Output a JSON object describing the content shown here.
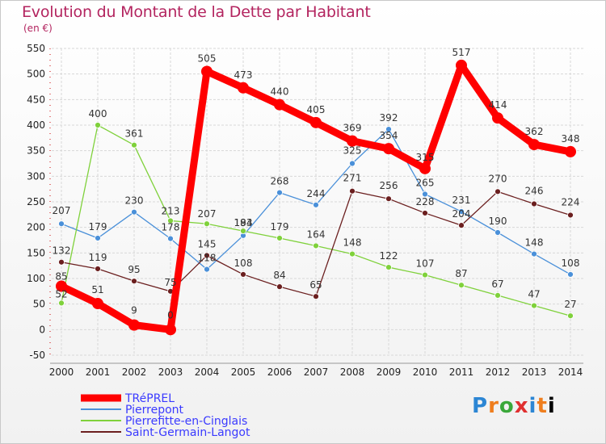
{
  "title": "Evolution du Montant de la Dette par Habitant",
  "subtitle": "(en €)",
  "logo_text": "Proxiti",
  "chart_data": {
    "type": "line",
    "title": "Evolution du Montant de la Dette par Habitant",
    "subtitle": "(en €)",
    "x": [
      "2000",
      "2001",
      "2002",
      "2003",
      "2004",
      "2005",
      "2006",
      "2007",
      "2008",
      "2009",
      "2010",
      "2011",
      "2012",
      "2013",
      "2014"
    ],
    "ylim": [
      -50,
      550
    ],
    "yticks": [
      "-50",
      "0",
      "50",
      "100",
      "150",
      "200",
      "250",
      "300",
      "350",
      "400",
      "450",
      "500",
      "550"
    ],
    "grid": true,
    "legend_position": "bottom-left",
    "series": [
      {
        "name": "TRéPREL",
        "color": "#ff0000",
        "values": [
          85,
          51,
          9,
          0,
          505,
          473,
          440,
          405,
          369,
          354,
          315,
          517,
          414,
          362,
          348
        ],
        "labels": [
          "85",
          "51",
          "9",
          "0",
          "505",
          "473",
          "440",
          "405",
          "369",
          "354",
          "315",
          "517",
          "414",
          "362",
          "348"
        ]
      },
      {
        "name": "Pierrepont",
        "color": "#4a90d9",
        "values": [
          207,
          179,
          230,
          178,
          118,
          184,
          268,
          244,
          325,
          392,
          265,
          231,
          190,
          148,
          108
        ],
        "labels": [
          "207",
          "179",
          "230",
          "178",
          "118",
          "184",
          "268",
          "244",
          "325",
          "392",
          "265",
          "231",
          "190",
          "148",
          "108"
        ]
      },
      {
        "name": "Pierrefitte-en-Cinglais",
        "color": "#7fd13b",
        "values": [
          52,
          400,
          361,
          213,
          207,
          193,
          179,
          164,
          148,
          122,
          107,
          87,
          67,
          47,
          27
        ],
        "labels": [
          "52",
          "400",
          "361",
          "213",
          "207",
          "193",
          "179",
          "164",
          "148",
          "122",
          "107",
          "87",
          "67",
          "47",
          "27"
        ]
      },
      {
        "name": "Saint-Germain-Langot",
        "color": "#6b1f1f",
        "values": [
          132,
          119,
          95,
          75,
          145,
          108,
          84,
          65,
          271,
          256,
          228,
          204,
          270,
          246,
          224
        ],
        "labels": [
          "132",
          "119",
          "95",
          "75",
          "145",
          "108",
          "84",
          "65",
          "271",
          "256",
          "228",
          "204",
          "270",
          "246",
          "224"
        ]
      }
    ]
  }
}
